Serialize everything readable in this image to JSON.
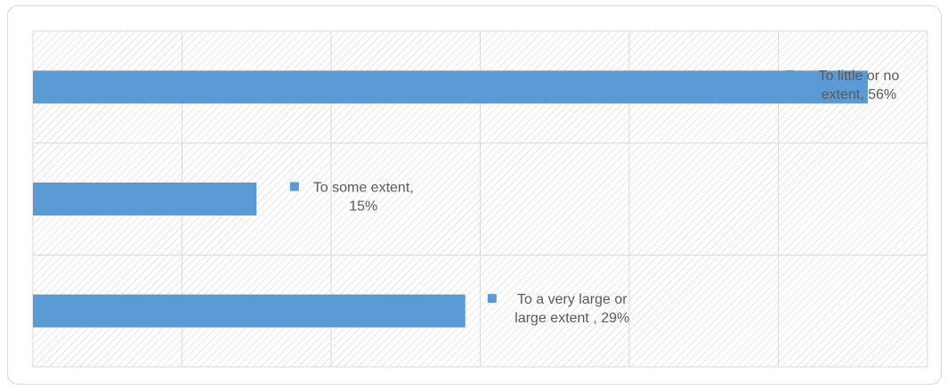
{
  "chart_data": {
    "type": "bar",
    "orientation": "horizontal",
    "title": "",
    "xlabel": "",
    "ylabel": "",
    "categories": [
      "To little or no extent",
      "To some extent",
      "To a very large or large extent"
    ],
    "values": [
      56,
      15,
      29
    ],
    "xlim": [
      0,
      60
    ],
    "grid": true,
    "legend": "none",
    "bar_color": "#5b9bd5",
    "gridline_color": "#d9d9d9",
    "hatch_color": "#d0d0d0",
    "data_labels": [
      {
        "line1": "To little or no",
        "line2": "extent, 56%"
      },
      {
        "line1": "To some extent,",
        "line2": "15%"
      },
      {
        "line1": "To a very large or",
        "line2": "large extent , 29%"
      }
    ]
  }
}
